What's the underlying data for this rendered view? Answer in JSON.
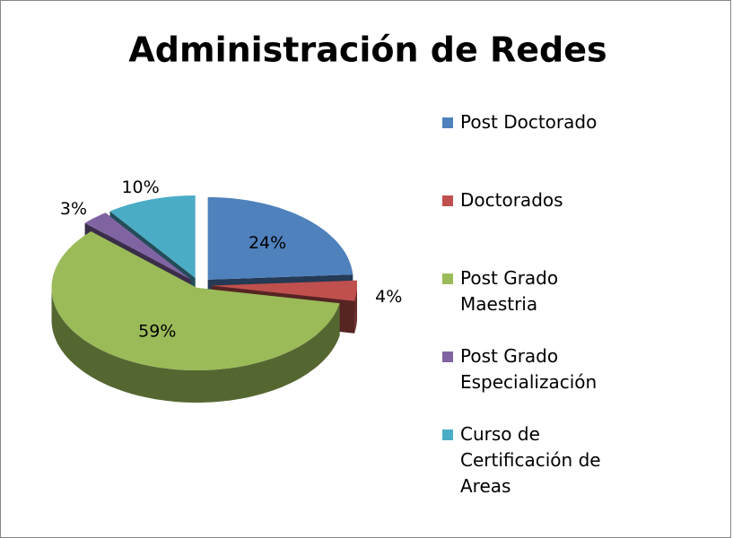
{
  "chart_data": {
    "type": "pie",
    "title": "Administración de Redes",
    "categories": [
      "Post Doctorado",
      "Doctorados",
      "Post Grado Maestria",
      "Post Grado Especialización",
      "Curso de Certificación de Areas"
    ],
    "values": [
      24,
      4,
      59,
      3,
      10
    ],
    "value_labels": [
      "24%",
      "4%",
      "59%",
      "3%",
      "10%"
    ],
    "colors": [
      "#4f81bd",
      "#c0504d",
      "#9bbb59",
      "#8064a2",
      "#4bacc6"
    ],
    "legend": "right"
  }
}
